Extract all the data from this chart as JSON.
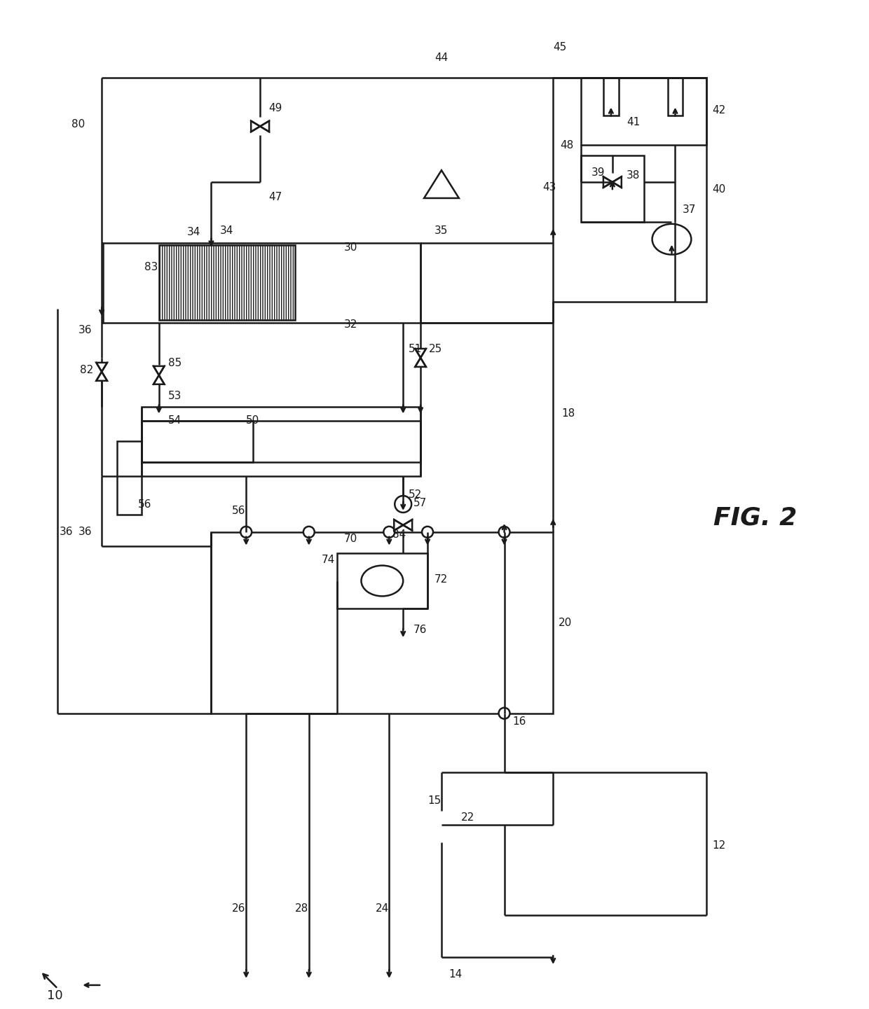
{
  "background": "#ffffff",
  "line_color": "#1a1a1a",
  "lw": 1.8,
  "fig_label": "FIG. 2",
  "label_fs": 11,
  "fig_label_fs": 26
}
